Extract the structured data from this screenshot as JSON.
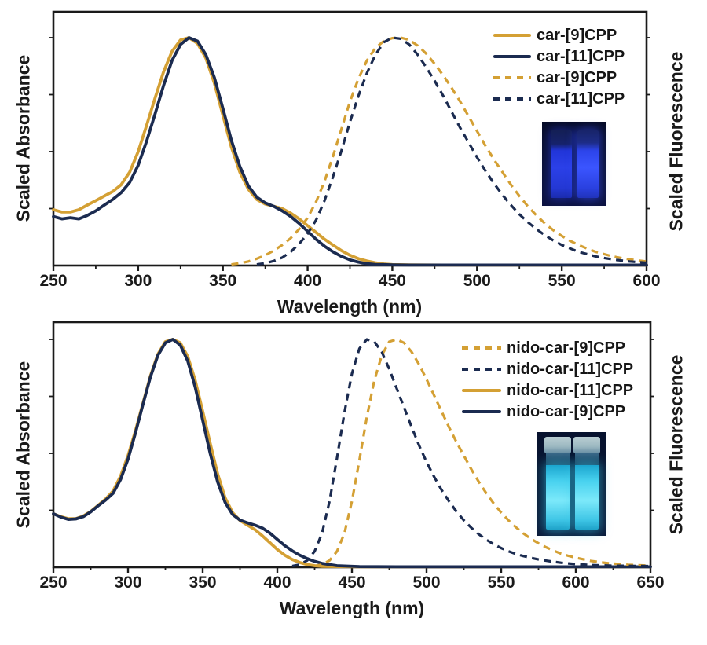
{
  "colors": {
    "gold": "#D4A034",
    "navy": "#1B2B50",
    "axis": "#1a1a1a",
    "uv_blue_glow": "#2B40E8",
    "uv_cyan_glow": "#49D2EF"
  },
  "chart_data": [
    {
      "type": "line",
      "title": "",
      "xlabel": "Wavelength (nm)",
      "ylabel_left": "Scaled Absorbance",
      "ylabel_right": "Scaled Fluorescence",
      "xlim": [
        250,
        600
      ],
      "ylim": [
        0,
        1.11
      ],
      "x_ticks": [
        250,
        300,
        350,
        400,
        450,
        500,
        550,
        600
      ],
      "x_minor_step": 25,
      "grid": false,
      "legend_position": "upper right",
      "inset": "uv-cuvette-photo",
      "legend": [
        {
          "label": "car-[9]CPP",
          "color": "#D4A034",
          "dash": false
        },
        {
          "label": "car-[11]CPP",
          "color": "#1B2B50",
          "dash": false
        },
        {
          "label": "car-[9]CPP",
          "color": "#D4A034",
          "dash": true
        },
        {
          "label": "car-[11]CPP",
          "color": "#1B2B50",
          "dash": true
        }
      ],
      "series": [
        {
          "name": "car-[9]CPP",
          "role": "absorbance",
          "style": "solid",
          "color": "#D4A034",
          "x": [
            250,
            255,
            260,
            265,
            270,
            275,
            280,
            285,
            290,
            295,
            300,
            305,
            310,
            315,
            320,
            325,
            330,
            335,
            340,
            345,
            350,
            355,
            360,
            365,
            370,
            375,
            380,
            385,
            390,
            395,
            400,
            405,
            410,
            415,
            420,
            425,
            430,
            435,
            440,
            445,
            450,
            460,
            480,
            520,
            560,
            600
          ],
          "y": [
            0.245,
            0.235,
            0.235,
            0.245,
            0.265,
            0.285,
            0.305,
            0.325,
            0.355,
            0.41,
            0.5,
            0.615,
            0.735,
            0.85,
            0.94,
            0.99,
            1.0,
            0.975,
            0.91,
            0.8,
            0.66,
            0.52,
            0.41,
            0.335,
            0.29,
            0.27,
            0.26,
            0.25,
            0.23,
            0.205,
            0.175,
            0.145,
            0.115,
            0.09,
            0.065,
            0.045,
            0.03,
            0.02,
            0.012,
            0.007,
            0.004,
            0.003,
            0.002,
            0.002,
            0.002,
            0.002
          ]
        },
        {
          "name": "car-[11]CPP",
          "role": "absorbance",
          "style": "solid",
          "color": "#1B2B50",
          "x": [
            250,
            255,
            260,
            265,
            270,
            275,
            280,
            285,
            290,
            295,
            300,
            305,
            310,
            315,
            320,
            325,
            330,
            335,
            340,
            345,
            350,
            355,
            360,
            365,
            370,
            375,
            380,
            385,
            390,
            395,
            400,
            405,
            410,
            415,
            420,
            425,
            430,
            435,
            440,
            445,
            450,
            460,
            480,
            520,
            560,
            600
          ],
          "y": [
            0.215,
            0.205,
            0.21,
            0.205,
            0.22,
            0.24,
            0.265,
            0.29,
            0.32,
            0.365,
            0.44,
            0.545,
            0.665,
            0.79,
            0.9,
            0.97,
            1.0,
            0.985,
            0.925,
            0.825,
            0.69,
            0.55,
            0.435,
            0.35,
            0.3,
            0.275,
            0.26,
            0.24,
            0.215,
            0.185,
            0.15,
            0.115,
            0.085,
            0.06,
            0.04,
            0.025,
            0.015,
            0.008,
            0.005,
            0.004,
            0.003,
            0.002,
            0.002,
            0.002,
            0.002,
            0.002
          ]
        },
        {
          "name": "car-[9]CPP",
          "role": "fluorescence",
          "style": "dashed",
          "color": "#D4A034",
          "x": [
            355,
            360,
            365,
            370,
            375,
            380,
            385,
            390,
            395,
            400,
            405,
            410,
            415,
            420,
            425,
            430,
            435,
            440,
            445,
            450,
            455,
            460,
            465,
            470,
            475,
            480,
            485,
            490,
            495,
            500,
            505,
            510,
            515,
            520,
            525,
            530,
            535,
            540,
            545,
            550,
            555,
            560,
            565,
            570,
            575,
            580,
            585,
            590,
            595,
            600
          ],
          "y": [
            0.005,
            0.01,
            0.018,
            0.03,
            0.045,
            0.065,
            0.09,
            0.12,
            0.16,
            0.21,
            0.28,
            0.37,
            0.48,
            0.6,
            0.72,
            0.82,
            0.9,
            0.955,
            0.985,
            0.998,
            1.0,
            0.99,
            0.965,
            0.93,
            0.885,
            0.835,
            0.78,
            0.72,
            0.655,
            0.59,
            0.525,
            0.465,
            0.41,
            0.355,
            0.305,
            0.26,
            0.22,
            0.185,
            0.155,
            0.13,
            0.108,
            0.09,
            0.074,
            0.06,
            0.05,
            0.04,
            0.033,
            0.027,
            0.022,
            0.018
          ]
        },
        {
          "name": "car-[11]CPP",
          "role": "fluorescence",
          "style": "dashed",
          "color": "#1B2B50",
          "x": [
            370,
            375,
            380,
            385,
            390,
            395,
            400,
            405,
            410,
            415,
            420,
            425,
            430,
            435,
            440,
            445,
            450,
            455,
            460,
            465,
            470,
            475,
            480,
            485,
            490,
            495,
            500,
            505,
            510,
            515,
            520,
            525,
            530,
            535,
            540,
            545,
            550,
            555,
            560,
            565,
            570,
            575,
            580,
            585,
            590,
            595,
            600
          ],
          "y": [
            0.005,
            0.01,
            0.02,
            0.035,
            0.06,
            0.095,
            0.14,
            0.2,
            0.285,
            0.39,
            0.505,
            0.63,
            0.745,
            0.845,
            0.925,
            0.98,
            1.0,
            0.995,
            0.97,
            0.925,
            0.87,
            0.81,
            0.745,
            0.675,
            0.605,
            0.54,
            0.475,
            0.415,
            0.36,
            0.31,
            0.265,
            0.225,
            0.19,
            0.16,
            0.133,
            0.11,
            0.09,
            0.075,
            0.06,
            0.05,
            0.04,
            0.033,
            0.027,
            0.022,
            0.018,
            0.015,
            0.012
          ]
        }
      ]
    },
    {
      "type": "line",
      "title": "",
      "xlabel": "Wavelength (nm)",
      "ylabel_left": "Scaled Absorbance",
      "ylabel_right": "Scaled Fluorescence",
      "xlim": [
        250,
        650
      ],
      "ylim": [
        0,
        1.08
      ],
      "x_ticks": [
        250,
        300,
        350,
        400,
        450,
        500,
        550,
        600,
        650
      ],
      "x_minor_step": 25,
      "grid": false,
      "legend_position": "upper right",
      "inset": "uv-cuvette-photo",
      "legend": [
        {
          "label": "nido-car-[9]CPP",
          "color": "#D4A034",
          "dash": true
        },
        {
          "label": "nido-car-[11]CPP",
          "color": "#1B2B50",
          "dash": true
        },
        {
          "label": "nido-car-[11]CPP",
          "color": "#D4A034",
          "dash": false
        },
        {
          "label": "nido-car-[9]CPP",
          "color": "#1B2B50",
          "dash": false
        }
      ],
      "series": [
        {
          "name": "nido-car-[11]CPP",
          "role": "absorbance",
          "style": "solid",
          "color": "#D4A034",
          "x": [
            250,
            255,
            260,
            265,
            270,
            275,
            280,
            285,
            290,
            295,
            300,
            305,
            310,
            315,
            320,
            325,
            330,
            335,
            340,
            345,
            350,
            355,
            360,
            365,
            370,
            375,
            380,
            385,
            390,
            395,
            400,
            405,
            410,
            415,
            420,
            425,
            430,
            440,
            455,
            480,
            520,
            580,
            650
          ],
          "y": [
            0.235,
            0.222,
            0.213,
            0.213,
            0.225,
            0.245,
            0.272,
            0.3,
            0.335,
            0.4,
            0.49,
            0.6,
            0.72,
            0.84,
            0.935,
            0.99,
            1.0,
            0.985,
            0.925,
            0.82,
            0.685,
            0.545,
            0.41,
            0.305,
            0.24,
            0.205,
            0.185,
            0.165,
            0.138,
            0.108,
            0.078,
            0.053,
            0.034,
            0.021,
            0.012,
            0.007,
            0.004,
            0.003,
            0.002,
            0.002,
            0.002,
            0.002,
            0.002
          ]
        },
        {
          "name": "nido-car-[9]CPP",
          "role": "absorbance",
          "style": "solid",
          "color": "#1B2B50",
          "x": [
            250,
            255,
            260,
            265,
            270,
            275,
            280,
            285,
            290,
            295,
            300,
            305,
            310,
            315,
            320,
            325,
            330,
            335,
            340,
            345,
            350,
            355,
            360,
            365,
            370,
            375,
            380,
            385,
            390,
            395,
            400,
            405,
            410,
            415,
            420,
            425,
            430,
            440,
            455,
            480,
            520,
            580,
            650
          ],
          "y": [
            0.235,
            0.22,
            0.21,
            0.212,
            0.222,
            0.243,
            0.27,
            0.295,
            0.325,
            0.385,
            0.475,
            0.59,
            0.715,
            0.835,
            0.93,
            0.985,
            1.0,
            0.975,
            0.905,
            0.79,
            0.645,
            0.5,
            0.375,
            0.285,
            0.232,
            0.207,
            0.195,
            0.185,
            0.172,
            0.15,
            0.122,
            0.095,
            0.072,
            0.053,
            0.038,
            0.026,
            0.017,
            0.007,
            0.003,
            0.002,
            0.002,
            0.002,
            0.002
          ]
        },
        {
          "name": "nido-car-[9]CPP",
          "role": "fluorescence",
          "style": "dashed",
          "color": "#D4A034",
          "x": [
            425,
            430,
            435,
            440,
            445,
            450,
            455,
            460,
            465,
            470,
            475,
            480,
            485,
            490,
            495,
            500,
            505,
            510,
            515,
            520,
            525,
            530,
            535,
            540,
            545,
            550,
            555,
            560,
            565,
            570,
            575,
            580,
            585,
            590,
            595,
            600,
            610,
            620,
            635,
            650
          ],
          "y": [
            0.005,
            0.012,
            0.03,
            0.07,
            0.15,
            0.29,
            0.47,
            0.66,
            0.82,
            0.93,
            0.99,
            1.0,
            0.985,
            0.945,
            0.89,
            0.825,
            0.755,
            0.685,
            0.615,
            0.55,
            0.49,
            0.43,
            0.375,
            0.325,
            0.28,
            0.24,
            0.205,
            0.175,
            0.148,
            0.125,
            0.105,
            0.088,
            0.073,
            0.06,
            0.05,
            0.042,
            0.028,
            0.019,
            0.011,
            0.007
          ]
        },
        {
          "name": "nido-car-[11]CPP",
          "role": "fluorescence",
          "style": "dashed",
          "color": "#1B2B50",
          "x": [
            410,
            415,
            420,
            425,
            430,
            435,
            440,
            445,
            450,
            455,
            460,
            465,
            470,
            475,
            480,
            485,
            490,
            495,
            500,
            505,
            510,
            515,
            520,
            525,
            530,
            535,
            540,
            545,
            550,
            555,
            560,
            565,
            570,
            575,
            580,
            585,
            590,
            595,
            600,
            610,
            625,
            650
          ],
          "y": [
            0.005,
            0.012,
            0.03,
            0.07,
            0.15,
            0.29,
            0.48,
            0.68,
            0.85,
            0.96,
            1.0,
            0.99,
            0.945,
            0.87,
            0.785,
            0.7,
            0.615,
            0.535,
            0.462,
            0.398,
            0.34,
            0.29,
            0.245,
            0.206,
            0.173,
            0.145,
            0.121,
            0.101,
            0.084,
            0.07,
            0.058,
            0.049,
            0.041,
            0.034,
            0.029,
            0.024,
            0.02,
            0.017,
            0.014,
            0.01,
            0.007,
            0.005
          ]
        }
      ]
    }
  ]
}
